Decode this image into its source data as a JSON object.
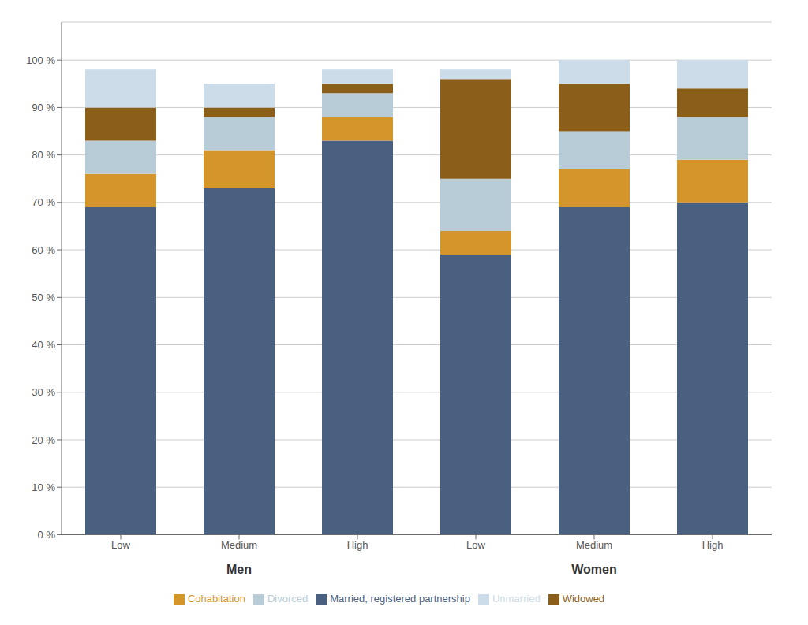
{
  "chart_data": {
    "type": "bar",
    "stacked": true,
    "grid": true,
    "legend": "bottom",
    "categories": [
      "Low",
      "Medium",
      "High",
      "Low",
      "Medium",
      "High"
    ],
    "group_labels": [
      "Men",
      "Women"
    ],
    "series": [
      {
        "name": "Married, registered partnership",
        "color": "#4a6080",
        "values": [
          69,
          73,
          83,
          59,
          69,
          70
        ]
      },
      {
        "name": "Cohabitation",
        "color": "#d4962a",
        "values": [
          7,
          8,
          5,
          5,
          8,
          9
        ]
      },
      {
        "name": "Divorced",
        "color": "#b8ccd8",
        "values": [
          7,
          7,
          5,
          11,
          8,
          9
        ]
      },
      {
        "name": "Widowed",
        "color": "#8b5e1a",
        "values": [
          7,
          2,
          2,
          21,
          10,
          6
        ]
      },
      {
        "name": "Unmarried",
        "color": "#ccdce8",
        "values": [
          8,
          5,
          3,
          2,
          5,
          6
        ]
      }
    ],
    "ylim": [
      0,
      108
    ],
    "yticks": [
      {
        "value": 0,
        "label": "0 %"
      },
      {
        "value": 10,
        "label": "10 %"
      },
      {
        "value": 20,
        "label": "20 %"
      },
      {
        "value": 30,
        "label": "30 %"
      },
      {
        "value": 40,
        "label": "40 %"
      },
      {
        "value": 50,
        "label": "50 %"
      },
      {
        "value": 60,
        "label": "60 %"
      },
      {
        "value": 70,
        "label": "70 %"
      },
      {
        "value": 80,
        "label": "80 %"
      },
      {
        "value": 90,
        "label": "90 %"
      },
      {
        "value": 100,
        "label": "100 %"
      }
    ]
  }
}
